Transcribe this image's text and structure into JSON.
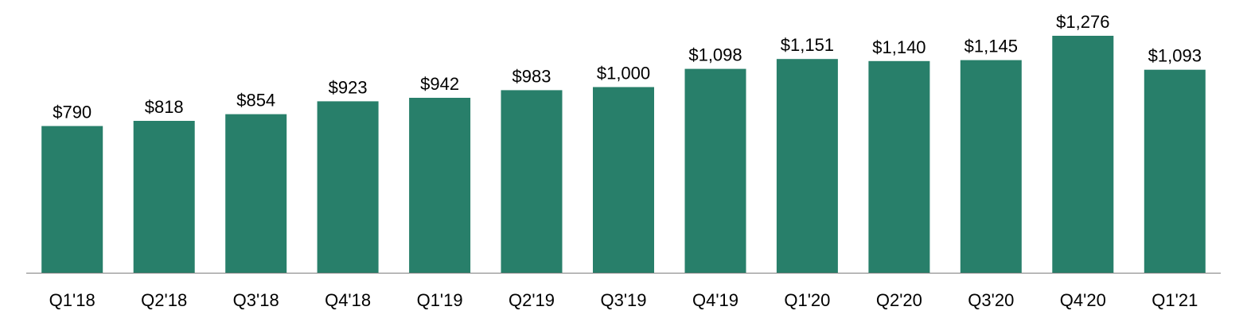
{
  "chart_data": {
    "type": "bar",
    "categories": [
      "Q1'18",
      "Q2'18",
      "Q3'18",
      "Q4'18",
      "Q1'19",
      "Q2'19",
      "Q3'19",
      "Q4'19",
      "Q1'20",
      "Q2'20",
      "Q3'20",
      "Q4'20",
      "Q1'21"
    ],
    "values": [
      790,
      818,
      854,
      923,
      942,
      983,
      1000,
      1098,
      1151,
      1140,
      1145,
      1276,
      1093
    ],
    "data_labels": [
      "$790",
      "$818",
      "$854",
      "$923",
      "$942",
      "$983",
      "$1,000",
      "$1,098",
      "$1,151",
      "$1,140",
      "$1,145",
      "$1,276",
      "$1,093"
    ],
    "title": "",
    "xlabel": "",
    "ylabel": "",
    "ylim": [
      0,
      1276
    ],
    "grid": false,
    "legend": "none",
    "bar_color": "#287F6A"
  }
}
